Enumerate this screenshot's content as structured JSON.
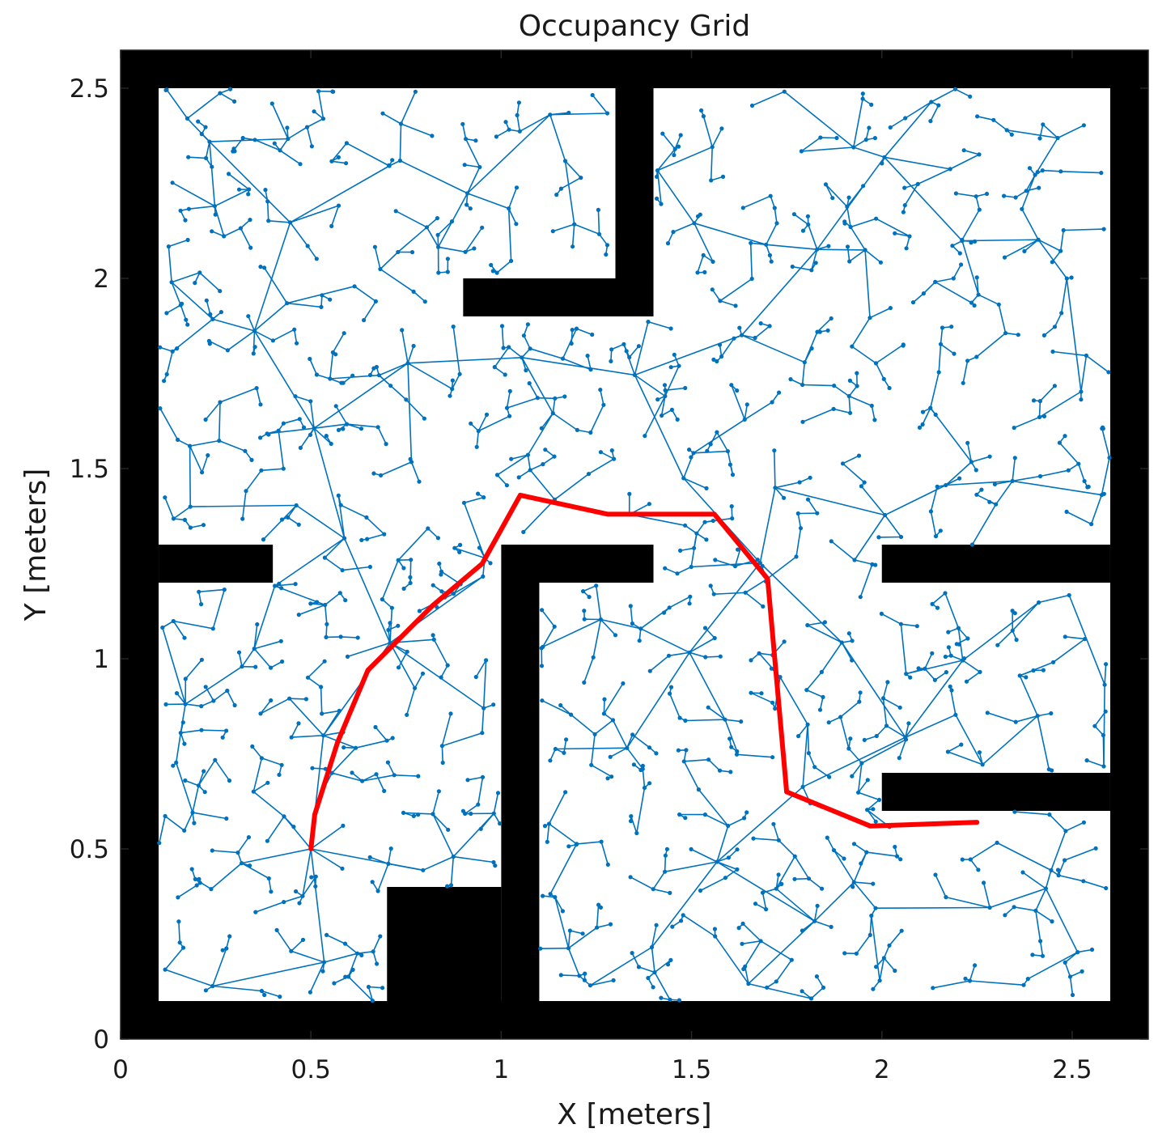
{
  "chart_data": {
    "type": "occupancy-grid-path",
    "title": "Occupancy Grid",
    "xlabel": "X [meters]",
    "ylabel": "Y [meters]",
    "xlim": [
      0,
      2.7
    ],
    "ylim": [
      0,
      2.6
    ],
    "xticks": [
      0,
      0.5,
      1,
      1.5,
      2,
      2.5
    ],
    "xtick_labels": [
      "0",
      "0.5",
      "1",
      "1.5",
      "2",
      "2.5"
    ],
    "yticks": [
      0,
      0.5,
      1,
      1.5,
      2,
      2.5
    ],
    "ytick_labels": [
      "0",
      "0.5",
      "1",
      "1.5",
      "2",
      "2.5"
    ],
    "grid": false,
    "colors": {
      "obstacle": "#000000",
      "free": "#ffffff",
      "tree": "#0072bd",
      "path": "#ff0000"
    },
    "obstacles": [
      {
        "x0": 0.0,
        "y0": 2.5,
        "x1": 2.7,
        "y1": 2.6
      },
      {
        "x0": 0.0,
        "y0": 0.0,
        "x1": 0.1,
        "y1": 2.6
      },
      {
        "x0": 2.6,
        "y0": 0.0,
        "x1": 2.7,
        "y1": 2.6
      },
      {
        "x0": 0.0,
        "y0": 0.0,
        "x1": 2.7,
        "y1": 0.1
      },
      {
        "x0": 1.3,
        "y0": 2.0,
        "x1": 1.4,
        "y1": 2.5
      },
      {
        "x0": 0.9,
        "y0": 1.9,
        "x1": 1.4,
        "y1": 2.0
      },
      {
        "x0": 0.1,
        "y0": 1.2,
        "x1": 0.4,
        "y1": 1.3
      },
      {
        "x0": 1.0,
        "y0": 1.2,
        "x1": 1.4,
        "y1": 1.3
      },
      {
        "x0": 1.0,
        "y0": 0.1,
        "x1": 1.1,
        "y1": 1.2
      },
      {
        "x0": 0.7,
        "y0": 0.0,
        "x1": 1.0,
        "y1": 0.4
      },
      {
        "x0": 2.0,
        "y0": 1.2,
        "x1": 2.6,
        "y1": 1.3
      },
      {
        "x0": 2.0,
        "y0": 0.6,
        "x1": 2.6,
        "y1": 0.7
      }
    ],
    "tree": {
      "name": "",
      "node_count": 1200,
      "seed": 7,
      "root": [
        0.5,
        0.5
      ],
      "max_branch": 0.3
    },
    "path": {
      "name": "",
      "points": [
        [
          0.5,
          0.5
        ],
        [
          0.51,
          0.59
        ],
        [
          0.57,
          0.78
        ],
        [
          0.65,
          0.97
        ],
        [
          0.72,
          1.04
        ],
        [
          0.82,
          1.14
        ],
        [
          0.95,
          1.25
        ],
        [
          1.05,
          1.43
        ],
        [
          1.28,
          1.38
        ],
        [
          1.56,
          1.38
        ],
        [
          1.7,
          1.21
        ],
        [
          1.75,
          0.65
        ],
        [
          1.97,
          0.56
        ],
        [
          2.25,
          0.57
        ]
      ]
    }
  }
}
